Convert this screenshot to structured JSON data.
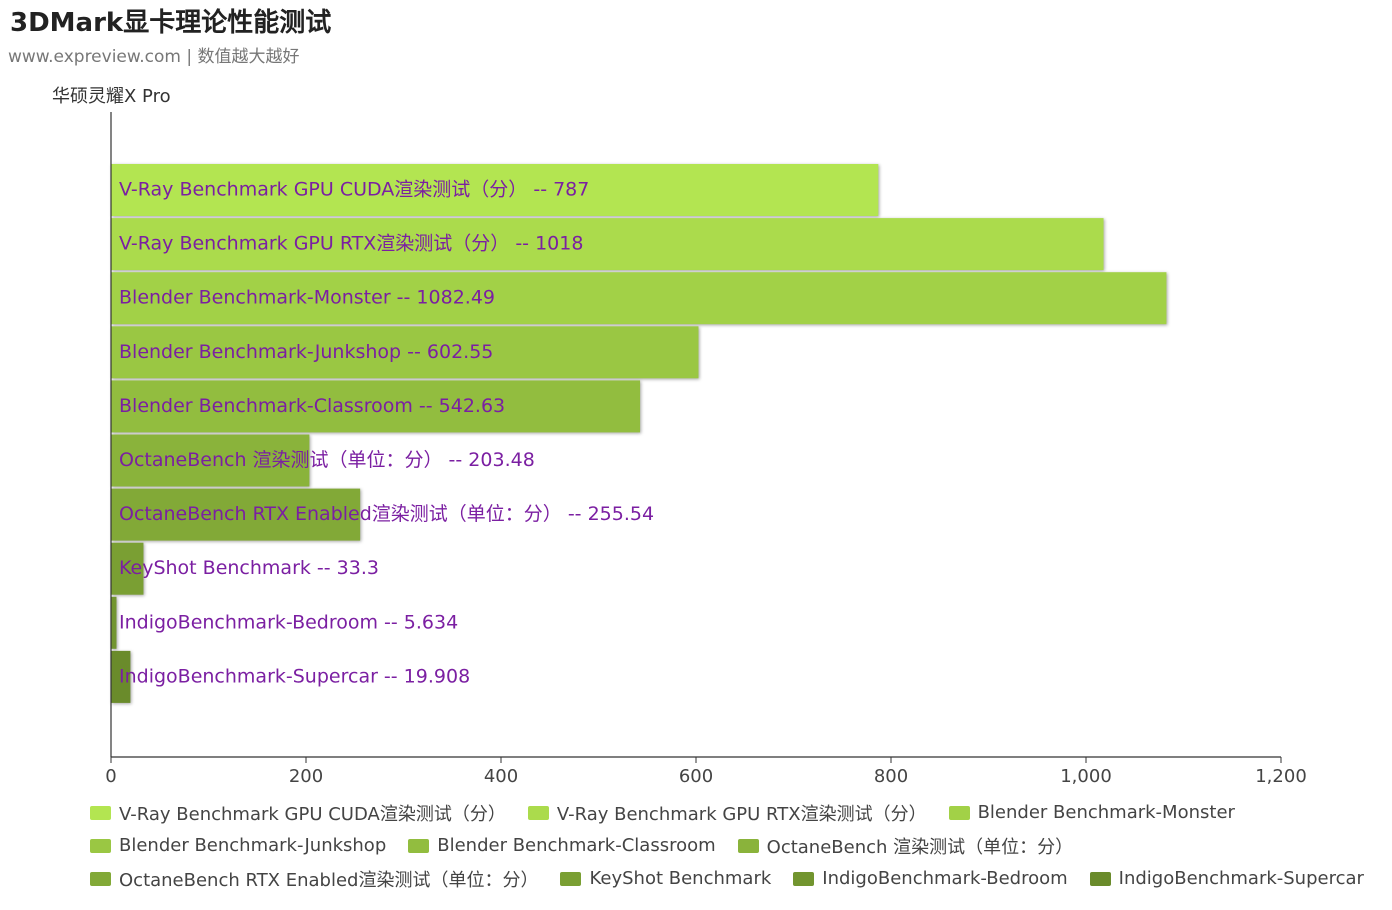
{
  "header": {
    "title": "3DMark显卡理论性能测试",
    "subtitle": "www.expreview.com | 数值越大越好"
  },
  "chart_data": {
    "type": "bar",
    "orientation": "horizontal",
    "series_label": "华硕灵耀X Pro",
    "categories": [
      "V-Ray Benchmark GPU CUDA渲染测试（分）",
      "V-Ray Benchmark GPU RTX渲染测试（分）",
      "Blender Benchmark-Monster",
      "Blender Benchmark-Junkshop",
      "Blender Benchmark-Classroom",
      "OctaneBench 渲染测试（单位：分）",
      "OctaneBench RTX Enabled渲染测试（单位：分）",
      "KeyShot Benchmark",
      "IndigoBenchmark-Bedroom",
      "IndigoBenchmark-Supercar"
    ],
    "values": [
      787,
      1018,
      1082.49,
      602.55,
      542.63,
      203.48,
      255.54,
      33.3,
      5.634,
      19.908
    ],
    "value_labels": [
      "787",
      "1018",
      "1082.49",
      "602.55",
      "542.63",
      "203.48",
      "255.54",
      "33.3",
      "5.634",
      "19.908"
    ],
    "label_separator": "--",
    "colors": [
      "#b3e551",
      "#abdb4c",
      "#a2d147",
      "#9ac743",
      "#92bd3f",
      "#8ab33b",
      "#82a937",
      "#7a9f33",
      "#72952f",
      "#6a8b2b"
    ],
    "label_color": "#7b1fa2",
    "xlim": [
      0,
      1200
    ],
    "x_ticks": [
      0,
      200,
      400,
      600,
      800,
      1000,
      1200
    ],
    "x_tick_labels": [
      "0",
      "200",
      "400",
      "600",
      "800",
      "1,000",
      "1,200"
    ],
    "legend_position": "bottom",
    "grid": false
  }
}
